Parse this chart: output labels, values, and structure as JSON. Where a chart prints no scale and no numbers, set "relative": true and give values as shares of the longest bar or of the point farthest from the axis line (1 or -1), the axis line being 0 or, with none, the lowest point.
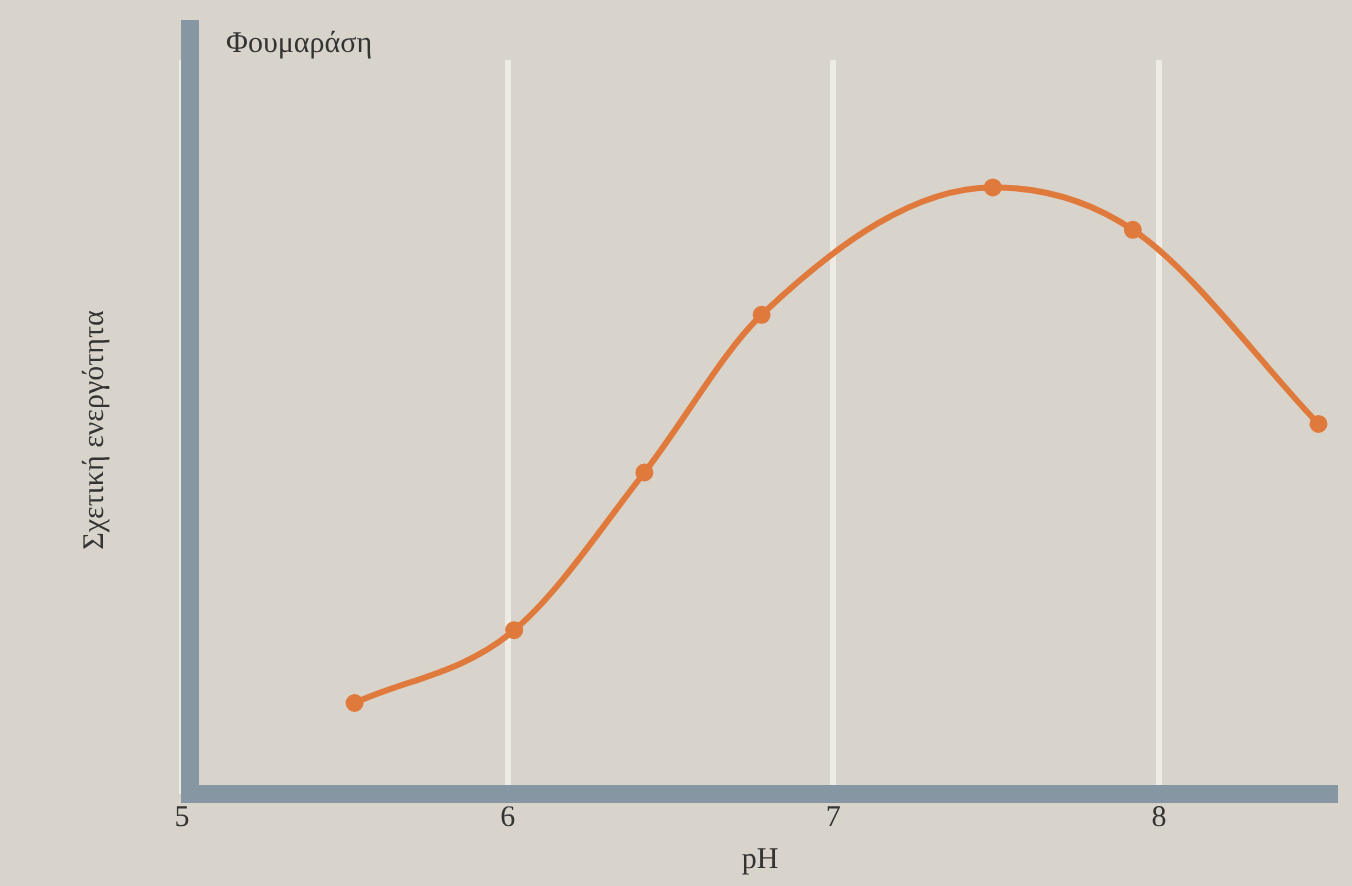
{
  "chart_data": {
    "type": "line",
    "title": "Φουμαράση",
    "xlabel": "pH",
    "ylabel": "Σχετική ενεργότητα",
    "relative": true,
    "x": [
      5.53,
      6.02,
      6.42,
      6.78,
      7.49,
      7.92,
      8.49
    ],
    "series": [
      {
        "color": "#e07a3c",
        "values": [
          0.15,
          0.27,
          0.53,
          0.79,
          1.0,
          0.93,
          0.61
        ]
      }
    ],
    "xlim": [
      5,
      8.55
    ],
    "xticks": [
      5,
      6,
      7,
      8
    ],
    "grid": "x",
    "legend": false,
    "marker": "circle",
    "line_style": "solid"
  }
}
